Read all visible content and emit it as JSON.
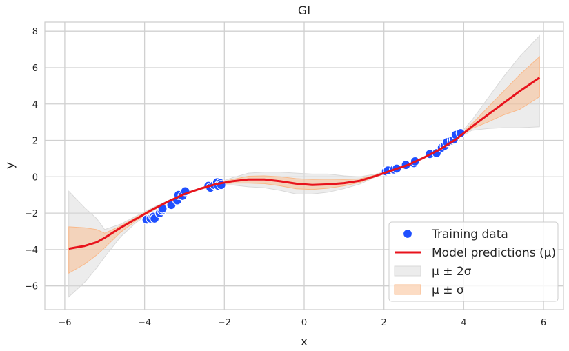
{
  "chart_data": {
    "type": "line",
    "title": "GI",
    "xlabel": "x",
    "ylabel": "y",
    "xlim": [
      -6.5,
      6.5
    ],
    "ylim": [
      -7.3,
      8.5
    ],
    "xticks": [
      -6,
      -4,
      -2,
      0,
      2,
      4,
      6
    ],
    "yticks": [
      -6,
      -4,
      -2,
      0,
      2,
      4,
      6,
      8
    ],
    "xtick_labels": [
      "−6",
      "−4",
      "−2",
      "0",
      "2",
      "4",
      "6"
    ],
    "ytick_labels": [
      "−6",
      "−4",
      "−2",
      "0",
      "2",
      "4",
      "6",
      "8"
    ],
    "grid": true,
    "legend_position": "lower-right",
    "colors": {
      "training": "#1f4fff",
      "prediction": "#e8131c",
      "band_2sigma": "#d9d9d9",
      "band_sigma": "#f9b98a"
    },
    "training_data": {
      "name": "Training data",
      "x": [
        -3.95,
        -3.85,
        -3.78,
        -3.75,
        -3.62,
        -3.57,
        -3.55,
        -3.33,
        -3.18,
        -3.15,
        -3.05,
        -2.98,
        -2.4,
        -2.35,
        -2.25,
        -2.18,
        -2.15,
        -2.1,
        -2.08,
        2.05,
        2.1,
        2.25,
        2.32,
        2.55,
        2.75,
        2.78,
        3.15,
        3.32,
        3.45,
        3.52,
        3.58,
        3.7,
        3.75,
        3.8,
        3.92
      ],
      "y": [
        -2.35,
        -2.3,
        -2.2,
        -2.3,
        -2.0,
        -1.85,
        -1.75,
        -1.55,
        -1.3,
        -1.0,
        -1.05,
        -0.8,
        -0.5,
        -0.6,
        -0.45,
        -0.3,
        -0.5,
        -0.35,
        -0.45,
        0.3,
        0.35,
        0.4,
        0.45,
        0.65,
        0.75,
        0.85,
        1.25,
        1.3,
        1.6,
        1.7,
        1.9,
        2.0,
        2.05,
        2.3,
        2.4
      ]
    },
    "prediction": {
      "name": "Model predictions (μ)",
      "x": [
        -5.9,
        -5.5,
        -5.2,
        -5.0,
        -4.6,
        -4.2,
        -3.8,
        -3.4,
        -3.0,
        -2.6,
        -2.2,
        -1.8,
        -1.4,
        -1.0,
        -0.6,
        -0.2,
        0.2,
        0.6,
        1.0,
        1.4,
        1.8,
        2.2,
        2.6,
        3.0,
        3.4,
        3.8,
        4.2,
        4.6,
        5.0,
        5.4,
        5.9
      ],
      "y": [
        -3.95,
        -3.8,
        -3.6,
        -3.35,
        -2.8,
        -2.3,
        -1.8,
        -1.35,
        -0.95,
        -0.65,
        -0.4,
        -0.25,
        -0.15,
        -0.15,
        -0.25,
        -0.38,
        -0.45,
        -0.42,
        -0.35,
        -0.22,
        0.05,
        0.35,
        0.65,
        1.05,
        1.5,
        2.05,
        2.75,
        3.4,
        4.05,
        4.7,
        5.45
      ]
    },
    "band_2sigma": {
      "name": "μ ± 2σ",
      "x": [
        -5.9,
        -5.5,
        -5.2,
        -5.0,
        -4.6,
        -4.2,
        -3.8,
        -3.4,
        -3.0,
        -2.6,
        -2.2,
        -1.8,
        -1.4,
        -1.0,
        -0.6,
        -0.2,
        0.2,
        0.6,
        1.0,
        1.4,
        1.8,
        2.2,
        2.6,
        3.0,
        3.4,
        3.8,
        4.2,
        4.6,
        5.0,
        5.4,
        5.9
      ],
      "lower": [
        -6.6,
        -5.8,
        -5.0,
        -4.4,
        -3.3,
        -2.5,
        -1.9,
        -1.4,
        -1.0,
        -0.7,
        -0.45,
        -0.45,
        -0.55,
        -0.6,
        -0.75,
        -0.95,
        -0.95,
        -0.85,
        -0.65,
        -0.4,
        0.0,
        0.3,
        0.6,
        1.0,
        1.45,
        2.0,
        2.55,
        2.65,
        2.7,
        2.7,
        2.75
      ],
      "upper": [
        -0.8,
        -1.7,
        -2.3,
        -2.9,
        -2.6,
        -2.15,
        -1.7,
        -1.3,
        -0.9,
        -0.6,
        -0.35,
        -0.05,
        0.2,
        0.25,
        0.25,
        0.2,
        0.15,
        0.15,
        0.05,
        0.0,
        0.15,
        0.4,
        0.7,
        1.1,
        1.55,
        2.1,
        3.1,
        4.3,
        5.5,
        6.6,
        7.75
      ]
    },
    "band_sigma": {
      "name": "μ ± σ",
      "x": [
        -5.9,
        -5.5,
        -5.2,
        -5.0,
        -4.6,
        -4.2,
        -3.8,
        -3.4,
        -3.0,
        -2.6,
        -2.2,
        -1.8,
        -1.4,
        -1.0,
        -0.6,
        -0.2,
        0.2,
        0.6,
        1.0,
        1.4,
        1.8,
        2.2,
        2.6,
        3.0,
        3.4,
        3.8,
        4.2,
        4.6,
        5.0,
        5.4,
        5.9
      ],
      "lower": [
        -5.3,
        -4.8,
        -4.3,
        -3.9,
        -3.05,
        -2.4,
        -1.85,
        -1.38,
        -0.98,
        -0.68,
        -0.43,
        -0.35,
        -0.35,
        -0.38,
        -0.5,
        -0.66,
        -0.7,
        -0.63,
        -0.5,
        -0.31,
        0.02,
        0.32,
        0.62,
        1.02,
        1.47,
        2.02,
        2.65,
        3.0,
        3.4,
        3.7,
        4.4
      ],
      "upper": [
        -2.75,
        -2.8,
        -2.9,
        -3.1,
        -2.7,
        -2.22,
        -1.75,
        -1.32,
        -0.92,
        -0.62,
        -0.37,
        -0.15,
        0.03,
        0.05,
        0.0,
        -0.1,
        -0.15,
        -0.13,
        -0.15,
        -0.11,
        0.1,
        0.38,
        0.68,
        1.08,
        1.53,
        2.08,
        2.9,
        3.8,
        4.7,
        5.6,
        6.6
      ]
    }
  }
}
